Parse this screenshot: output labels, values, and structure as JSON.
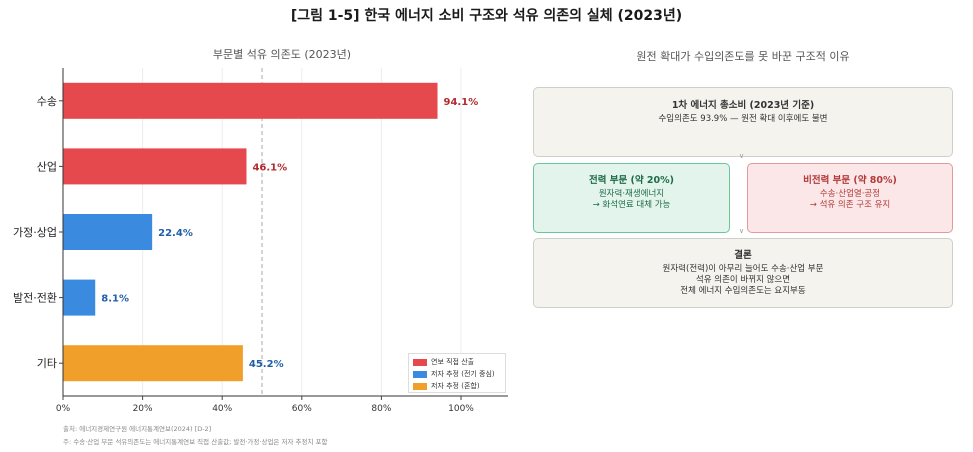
{
  "figure": {
    "title": "[그림 1-5]  한국 에너지 소비 구조와 석유 의존의 실체 (2023년)"
  },
  "chart_data": {
    "type": "bar",
    "orientation": "horizontal",
    "title": "부문별 석유 의존도 (2023년)",
    "categories": [
      "수송",
      "산업",
      "가정·상업",
      "발전·전환",
      "기타"
    ],
    "values": [
      94.1,
      46.1,
      22.4,
      8.1,
      45.2
    ],
    "value_labels": [
      "94.1%",
      "46.1%",
      "22.4%",
      "8.1%",
      "45.2%"
    ],
    "source_type": [
      "direct",
      "direct",
      "est_power",
      "est_power",
      "est_mixed"
    ],
    "xlim": [
      0,
      100
    ],
    "xticks": [
      0,
      20,
      40,
      60,
      80,
      100
    ],
    "xtick_labels": [
      "0%",
      "20%",
      "40%",
      "60%",
      "80%",
      "100%"
    ],
    "reference_line": 50,
    "grid": true,
    "legend_position": "bottom-right",
    "legend": [
      {
        "key": "direct",
        "label": "연보 직접 산출",
        "color": "#e5484d",
        "label_color": "#b32a2e"
      },
      {
        "key": "est_power",
        "label": "저자 추정 (전기 중심)",
        "color": "#3a8ae0",
        "label_color": "#1f5fa8"
      },
      {
        "key": "est_mixed",
        "label": "저자 추정 (혼합)",
        "color": "#f0a02a",
        "label_color": "#1f5fa8"
      }
    ]
  },
  "notes": {
    "source": "출처: 에너지경제연구원 에너지통계연보(2024) [D-2]",
    "note": "주: 수송·산업 부문 석유의존도는 에너지통계연보 직접 산출값; 발전·가정·상업은 저자 추정치 포함"
  },
  "flow": {
    "title": "원전 확대가 수입의존도를 못 바꾼 구조적 이유",
    "top": {
      "heading": "1차 에너지 총소비 (2023년 기준)",
      "line1": "수입의존도 93.9% — 원전 확대 이후에도 불변"
    },
    "left": {
      "heading": "전력 부문 (약 20%)",
      "line1": "원자력·재생에너지",
      "line2": "→ 화석연료 대체 가능"
    },
    "right": {
      "heading": "비전력 부문 (약 80%)",
      "line1": "수송·산업열·공정",
      "line2": "→ 석유 의존 구조 유지"
    },
    "bottom": {
      "heading": "결론",
      "line1": "원자력(전력)이 아무리 늘어도 수송·산업 부문",
      "line2": "석유 의존이 바뀌지 않으면",
      "line3": "전체 에너지 수입의존도는 요지부동"
    },
    "arrow_glyph": "∨"
  }
}
